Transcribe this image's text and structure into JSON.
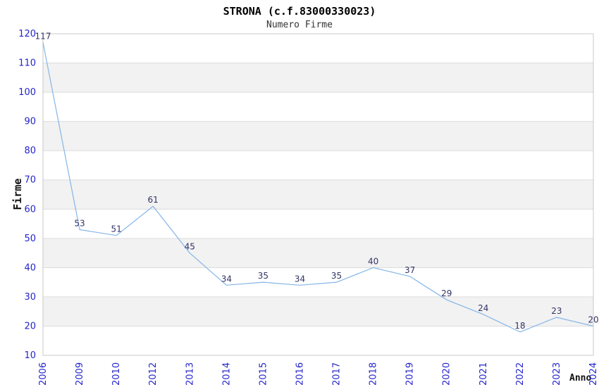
{
  "chart_data": {
    "type": "line",
    "title": "STRONA (c.f.83000330023)",
    "subtitle": "Numero Firme",
    "xlabel": "Anno",
    "ylabel": "Firme",
    "categories": [
      "2006",
      "2009",
      "2010",
      "2012",
      "2013",
      "2014",
      "2015",
      "2016",
      "2017",
      "2018",
      "2019",
      "2020",
      "2021",
      "2022",
      "2023",
      "2024"
    ],
    "values": [
      117,
      53,
      51,
      61,
      45,
      34,
      35,
      34,
      35,
      40,
      37,
      29,
      24,
      18,
      23,
      20
    ],
    "ylim": [
      10,
      120
    ],
    "ytick_step": 10,
    "yticks": [
      10,
      20,
      30,
      40,
      50,
      60,
      70,
      80,
      90,
      100,
      110,
      120
    ],
    "grid": true,
    "legend": "none",
    "band_pattern": "alternating horizontal bands, gray between 20-30, 40-50, 60-70, 80-90, 100-110",
    "data_labels_shown": true,
    "x_tick_rotation_deg": -90,
    "colors": {
      "line": "#85b5e7",
      "tick_label": "#2424cc",
      "data_label": "#333366",
      "band": "#f2f2f2",
      "gridline": "#dcdcdc",
      "border": "#c8c8c8",
      "title": "#000000",
      "subtitle": "#333333",
      "axis_title": "#111111",
      "background": "#ffffff"
    }
  }
}
